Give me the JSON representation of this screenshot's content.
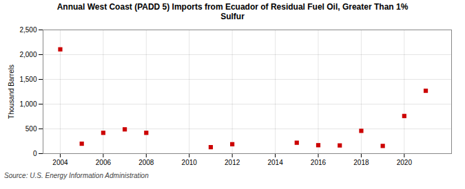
{
  "chart_data": {
    "type": "scatter",
    "title": "Annual West Coast (PADD 5) Imports from Ecuador of Residual Fuel Oil, Greater Than 1%\nSulfur",
    "ylabel": "Thousand Barrels",
    "source": "Source: U.S. Energy Information Administration",
    "x": [
      2004,
      2005,
      2006,
      2007,
      2008,
      2011,
      2012,
      2015,
      2016,
      2017,
      2018,
      2019,
      2020,
      2021
    ],
    "values": [
      2107,
      200,
      420,
      490,
      420,
      130,
      190,
      220,
      170,
      165,
      460,
      155,
      760,
      1270
    ],
    "color": "#cc0000",
    "marker": "square",
    "xlim": [
      2003.2,
      2022.2
    ],
    "xticks": [
      2004,
      2006,
      2008,
      2010,
      2012,
      2014,
      2016,
      2018,
      2020
    ],
    "ylim": [
      0,
      2500
    ],
    "yticks": [
      0,
      500,
      {
        "value": 1000,
        "label": "1,000"
      },
      {
        "value": 1500,
        "label": "1,500"
      },
      {
        "value": 2000,
        "label": "2,000"
      },
      {
        "value": 2500,
        "label": "2,500"
      }
    ],
    "grid": true
  }
}
